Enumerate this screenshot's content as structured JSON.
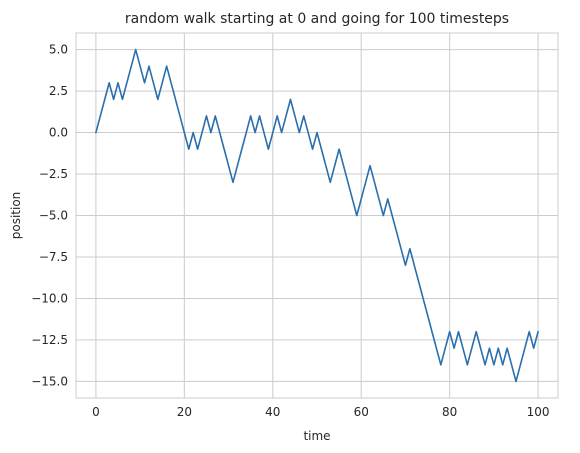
{
  "chart_data": {
    "type": "line",
    "title": "random walk starting at 0 and going for 100 timesteps",
    "xlabel": "time",
    "ylabel": "position",
    "xlim": [
      -4.5,
      104.5
    ],
    "ylim": [
      -16,
      6
    ],
    "xticks": [
      0,
      20,
      40,
      60,
      80,
      100
    ],
    "yticks": [
      5.0,
      2.5,
      0.0,
      -2.5,
      -5.0,
      -7.5,
      -10.0,
      -12.5,
      -15.0
    ],
    "ytick_labels": [
      "5.0",
      "2.5",
      "0.0",
      "−2.5",
      "−5.0",
      "−7.5",
      "−10.0",
      "−12.5",
      "−15.0"
    ],
    "grid": true,
    "legend": "none",
    "series": [
      {
        "color": "#2a6fad",
        "x": [
          0,
          1,
          2,
          3,
          4,
          5,
          6,
          7,
          8,
          9,
          10,
          11,
          12,
          13,
          14,
          15,
          16,
          17,
          18,
          19,
          20,
          21,
          22,
          23,
          24,
          25,
          26,
          27,
          28,
          29,
          30,
          31,
          32,
          33,
          34,
          35,
          36,
          37,
          38,
          39,
          40,
          41,
          42,
          43,
          44,
          45,
          46,
          47,
          48,
          49,
          50,
          51,
          52,
          53,
          54,
          55,
          56,
          57,
          58,
          59,
          60,
          61,
          62,
          63,
          64,
          65,
          66,
          67,
          68,
          69,
          70,
          71,
          72,
          73,
          74,
          75,
          76,
          77,
          78,
          79,
          80,
          81,
          82,
          83,
          84,
          85,
          86,
          87,
          88,
          89,
          90,
          91,
          92,
          93,
          94,
          95,
          96,
          97,
          98,
          99,
          100
        ],
        "y": [
          0,
          1,
          2,
          3,
          2,
          3,
          2,
          3,
          4,
          5,
          4,
          3,
          4,
          3,
          2,
          3,
          4,
          3,
          2,
          1,
          0,
          -1,
          0,
          -1,
          0,
          1,
          0,
          1,
          0,
          -1,
          -2,
          -3,
          -2,
          -1,
          0,
          1,
          0,
          1,
          0,
          -1,
          0,
          1,
          0,
          1,
          2,
          1,
          0,
          1,
          0,
          -1,
          0,
          -1,
          -2,
          -3,
          -2,
          -1,
          -2,
          -3,
          -4,
          -5,
          -4,
          -3,
          -2,
          -3,
          -4,
          -5,
          -4,
          -5,
          -6,
          -7,
          -8,
          -7,
          -8,
          -9,
          -10,
          -11,
          -12,
          -13,
          -14,
          -13,
          -12,
          -13,
          -12,
          -13,
          -14,
          -13,
          -12,
          -13,
          -14,
          -13,
          -14,
          -13,
          -14,
          -13,
          -14,
          -15,
          -14,
          -13,
          -12,
          -13,
          -12
        ]
      }
    ]
  }
}
